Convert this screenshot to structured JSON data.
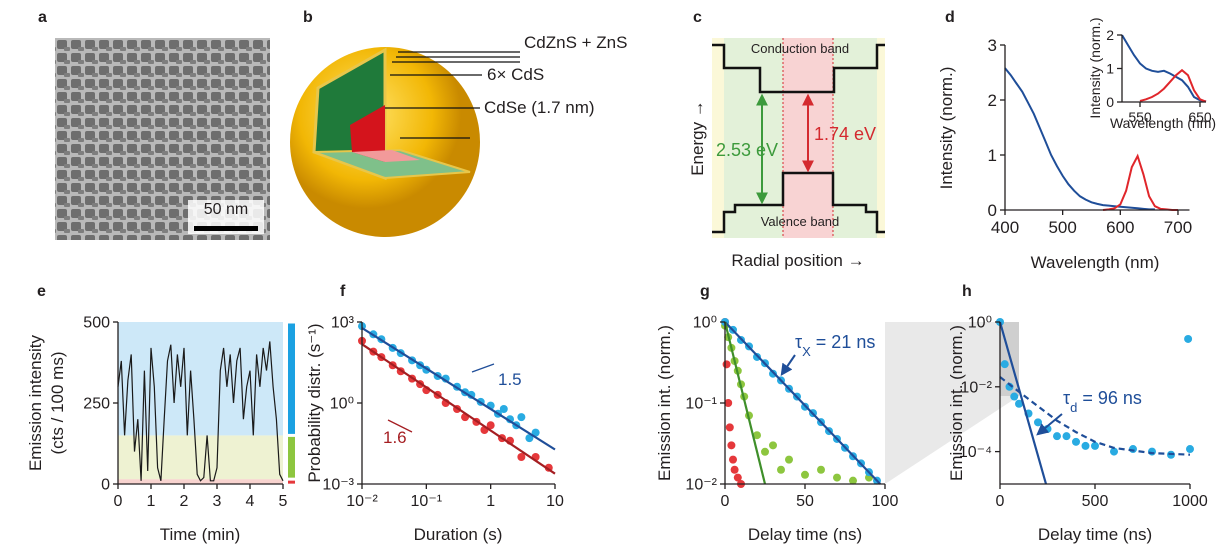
{
  "panel_labels": [
    "a",
    "b",
    "c",
    "d",
    "e",
    "f",
    "g",
    "h"
  ],
  "panel_a": {
    "scale_bar": "50 nm"
  },
  "panel_b": {
    "labels": [
      "CdZnS + ZnS",
      "6× CdS",
      "CdSe (1.7 nm)"
    ]
  },
  "panel_c": {
    "conduction_band": "Conduction band",
    "valence_band": "Valence band",
    "shell_gap": "2.53 eV",
    "core_gap": "1.74 eV",
    "ylabel": "Energy →",
    "xlabel": "Radial position →"
  },
  "chart_data": [
    {
      "type": "line",
      "xlabel": "Wavelength (nm)",
      "ylabel": "Intensity (norm.)",
      "xlim": [
        400,
        720
      ],
      "ylim": [
        0,
        3
      ],
      "xticks": [
        400,
        500,
        600,
        700
      ],
      "yticks": [
        0,
        1,
        2,
        3
      ],
      "x": [
        400,
        410,
        420,
        430,
        440,
        450,
        460,
        470,
        480,
        490,
        500,
        510,
        520,
        530,
        540,
        550,
        560,
        570,
        580,
        590,
        600,
        610,
        620,
        630,
        640,
        650,
        660,
        670,
        680,
        690,
        700
      ],
      "series": [
        {
          "color": "#1f4e99",
          "values": [
            2.58,
            2.45,
            2.3,
            2.15,
            1.95,
            1.75,
            1.5,
            1.25,
            1.0,
            0.8,
            0.62,
            0.47,
            0.35,
            0.25,
            0.19,
            0.14,
            0.11,
            0.09,
            0.08,
            0.07,
            0.06,
            0.05,
            0.04,
            0.03,
            0.02,
            0.01,
            0.01,
            null,
            null,
            null,
            null
          ]
        },
        {
          "color": "#e0262b",
          "values": [
            null,
            null,
            null,
            null,
            null,
            null,
            null,
            null,
            null,
            null,
            null,
            null,
            null,
            null,
            null,
            null,
            null,
            0,
            0.01,
            0.03,
            0.1,
            0.35,
            0.78,
            0.98,
            0.65,
            0.25,
            0.07,
            0.02,
            0.01,
            0,
            0
          ]
        }
      ]
    },
    {
      "type": "line",
      "xlabel": "Wavelength (nm)",
      "ylabel": "Intensity (norm.)",
      "xlim": [
        520,
        660
      ],
      "ylim": [
        0,
        2
      ],
      "xticks": [
        550,
        650
      ],
      "yticks": [
        0,
        1,
        2
      ],
      "x": [
        520,
        530,
        540,
        550,
        560,
        570,
        580,
        590,
        600,
        610,
        620,
        630,
        640,
        650,
        660
      ],
      "series": [
        {
          "color": "#1f4e99",
          "values": [
            2.0,
            1.7,
            1.4,
            1.15,
            1.0,
            0.93,
            0.9,
            0.93,
            0.85,
            0.75,
            0.65,
            0.45,
            0.15,
            0.05,
            0.02
          ]
        },
        {
          "color": "#e0262b",
          "values": [
            null,
            null,
            null,
            0.03,
            0.08,
            0.15,
            0.25,
            0.4,
            0.6,
            0.8,
            0.95,
            0.8,
            0.35,
            0.08,
            0.01
          ]
        }
      ]
    },
    {
      "type": "line",
      "xlabel": "Time (min)",
      "ylabel": [
        "Emission intensity",
        "(cts / 100 ms)"
      ],
      "xlim": [
        0,
        5
      ],
      "ylim": [
        0,
        500
      ],
      "xticks": [
        0,
        1,
        2,
        3,
        4,
        5
      ],
      "yticks": [
        0,
        250,
        500
      ],
      "bands": [
        {
          "from": 0,
          "to": 15,
          "color": "#f8d3cf",
          "bar_color": "#e5383b"
        },
        {
          "from": 15,
          "to": 150,
          "color": "#eef2d2",
          "bar_color": "#8dc63f"
        },
        {
          "from": 150,
          "to": 500,
          "color": "#cde8f8",
          "bar_color": "#1ba1e2"
        }
      ],
      "x": [
        0,
        0.1,
        0.2,
        0.3,
        0.4,
        0.5,
        0.6,
        0.7,
        0.8,
        0.9,
        1,
        1.1,
        1.2,
        1.3,
        1.4,
        1.5,
        1.6,
        1.7,
        1.8,
        1.9,
        2,
        2.1,
        2.2,
        2.3,
        2.4,
        2.5,
        2.6,
        2.7,
        2.8,
        2.9,
        3,
        3.1,
        3.2,
        3.3,
        3.4,
        3.5,
        3.6,
        3.7,
        3.8,
        3.9,
        4,
        4.1,
        4.2,
        4.3,
        4.4,
        4.5,
        4.6,
        4.7,
        4.8,
        4.9,
        5
      ],
      "series": [
        {
          "color": "#1a1a1a",
          "values": [
            300,
            380,
            150,
            320,
            400,
            100,
            200,
            10,
            350,
            40,
            420,
            300,
            50,
            10,
            200,
            380,
            430,
            250,
            400,
            300,
            420,
            150,
            350,
            200,
            30,
            10,
            20,
            150,
            10,
            10,
            50,
            350,
            420,
            300,
            400,
            250,
            380,
            420,
            200,
            300,
            350,
            150,
            400,
            300,
            420,
            350,
            440,
            300,
            200,
            30,
            10
          ]
        }
      ]
    },
    {
      "type": "scatter",
      "xlabel": "Duration (s)",
      "ylabel": "Probability distr. (s⁻¹)",
      "xlog": true,
      "ylog": true,
      "xlim": [
        0.01,
        10
      ],
      "ylim": [
        0.001,
        1000
      ],
      "xticks": [
        {
          "value": 0.01,
          "label": "10⁻²"
        },
        {
          "value": 0.1,
          "label": "10⁻¹"
        },
        1,
        10
      ],
      "yticks": [
        {
          "value": 0.001,
          "label": "10⁻³"
        },
        {
          "value": 1,
          "label": "10⁰"
        },
        {
          "value": 1000,
          "label": "10³"
        }
      ],
      "series": [
        {
          "color": "#29abe2",
          "x": [
            0.01,
            0.015,
            0.02,
            0.03,
            0.04,
            0.06,
            0.08,
            0.1,
            0.15,
            0.2,
            0.3,
            0.4,
            0.5,
            0.7,
            1,
            1.3,
            1.6,
            2,
            2.5,
            3,
            4,
            5
          ],
          "values": [
            700,
            350,
            230,
            110,
            70,
            38,
            25,
            17,
            10,
            8,
            4,
            2.5,
            2,
            1.1,
            0.8,
            0.4,
            0.6,
            0.25,
            0.15,
            0.3,
            0.05,
            0.08
          ]
        },
        {
          "color": "#e5383b",
          "x": [
            0.01,
            0.015,
            0.02,
            0.03,
            0.04,
            0.06,
            0.08,
            0.1,
            0.15,
            0.2,
            0.3,
            0.4,
            0.6,
            0.8,
            1,
            1.5,
            2,
            3,
            5,
            8
          ],
          "values": [
            200,
            80,
            50,
            25,
            15,
            8,
            5,
            3,
            2,
            1,
            0.6,
            0.3,
            0.2,
            0.1,
            0.15,
            0.05,
            0.04,
            0.01,
            0.01,
            0.004
          ]
        }
      ],
      "fits": [
        {
          "color": "#1f4e99",
          "x": [
            0.01,
            10
          ],
          "values": [
            600,
            0.019
          ]
        },
        {
          "color": "#a51e22",
          "x": [
            0.01,
            10
          ],
          "values": [
            150,
            0.0024
          ]
        }
      ],
      "annotations": [
        "1.5",
        "1.6"
      ]
    },
    {
      "type": "scatter",
      "xlabel": "Delay time (ns)",
      "ylabel": "Emission int. (norm.)",
      "ylog": true,
      "xlim": [
        0,
        100
      ],
      "ylim": [
        0.01,
        1
      ],
      "xticks": [
        0,
        50,
        100
      ],
      "yticks": [
        {
          "value": 0.01,
          "label": "10⁻²"
        },
        {
          "value": 0.1,
          "label": "10⁻¹"
        },
        {
          "value": 1,
          "label": "10⁰"
        }
      ],
      "series": [
        {
          "color": "#e5383b",
          "x": [
            0,
            1,
            2,
            3,
            4,
            5,
            6,
            8,
            10
          ],
          "values": [
            1,
            0.3,
            0.1,
            0.05,
            0.03,
            0.02,
            0.015,
            0.012,
            0.01
          ]
        },
        {
          "color": "#8dc63f",
          "x": [
            0,
            2,
            4,
            6,
            8,
            10,
            12,
            15,
            20,
            25,
            30,
            35,
            40,
            50,
            60,
            70,
            80,
            90
          ],
          "values": [
            0.9,
            0.65,
            0.48,
            0.33,
            0.25,
            0.17,
            0.12,
            0.07,
            0.04,
            0.025,
            0.03,
            0.015,
            0.02,
            0.013,
            0.015,
            0.012,
            0.011,
            0.012
          ]
        },
        {
          "color": "#29abe2",
          "x": [
            0,
            5,
            10,
            15,
            20,
            25,
            30,
            35,
            40,
            45,
            50,
            55,
            60,
            65,
            70,
            75,
            80,
            85,
            90,
            95
          ],
          "values": [
            1,
            0.8,
            0.6,
            0.5,
            0.37,
            0.31,
            0.23,
            0.19,
            0.15,
            0.12,
            0.09,
            0.075,
            0.058,
            0.045,
            0.036,
            0.028,
            0.022,
            0.018,
            0.014,
            0.011
          ]
        }
      ],
      "fits": [
        {
          "color": "#1f4e99",
          "x": [
            0,
            97
          ],
          "values": [
            1,
            0.01
          ]
        },
        {
          "color": "#3f8f2a",
          "x": [
            0,
            25
          ],
          "values": [
            1,
            0.01
          ]
        }
      ],
      "annotation": [
        "τ",
        "X",
        " = 21 ns"
      ]
    },
    {
      "type": "scatter",
      "xlabel": "Delay time (ns)",
      "ylabel": "Emission int. (norm.)",
      "ylog": true,
      "xlim": [
        0,
        1000
      ],
      "ylim": [
        1e-05,
        1
      ],
      "xticks": [
        0,
        500,
        1000
      ],
      "yticks": [
        {
          "value": 0.0001,
          "label": "10⁻⁴"
        },
        {
          "value": 0.01,
          "label": "10⁻²"
        },
        {
          "value": 1,
          "label": "10⁰"
        }
      ],
      "series": [
        {
          "color": "#29abe2",
          "x": [
            0,
            25,
            50,
            75,
            100,
            150,
            200,
            250,
            300,
            350,
            400,
            450,
            500,
            600,
            700,
            800,
            900,
            990,
            1000
          ],
          "values": [
            1,
            0.05,
            0.01,
            0.005,
            0.003,
            0.0015,
            0.0008,
            0.0005,
            0.0003,
            0.0003,
            0.0002,
            0.00015,
            0.00015,
            0.0001,
            0.00012,
            0.0001,
            8e-05,
            0.3,
            0.00012
          ]
        }
      ],
      "fits": [
        {
          "color": "#1f4e99",
          "x": [
            0,
            242
          ],
          "values": [
            1,
            1e-05
          ]
        },
        {
          "color": "#1f4e99",
          "dashed": true,
          "x": [
            0,
            100,
            200,
            300,
            400,
            500,
            600,
            800,
            1000
          ],
          "values": [
            0.02,
            0.007,
            0.0025,
            0.0009,
            0.0004,
            0.0002,
            0.00013,
            9e-05,
            8e-05
          ]
        }
      ],
      "annotation": [
        "τ",
        "d",
        " = 96 ns"
      ]
    }
  ]
}
